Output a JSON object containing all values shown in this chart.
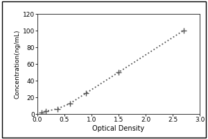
{
  "x_data": [
    0.074,
    0.148,
    0.372,
    0.6,
    0.9,
    1.5,
    2.7
  ],
  "y_data": [
    1.563,
    3.125,
    6.25,
    12.5,
    25.0,
    50.0,
    100.0
  ],
  "xlabel": "Optical Density",
  "ylabel": "Concentration(ng/mL)",
  "xlim": [
    0,
    3
  ],
  "ylim": [
    0,
    120
  ],
  "xticks": [
    0,
    0.5,
    1,
    1.5,
    2,
    2.5,
    3
  ],
  "yticks": [
    0,
    20,
    40,
    60,
    80,
    100,
    120
  ],
  "line_color": "#555555",
  "marker": "+",
  "marker_size": 6,
  "linestyle": "dotted",
  "linewidth": 1.3,
  "background_color": "#ffffff",
  "outer_border_color": "#000000",
  "xlabel_fontsize": 7,
  "ylabel_fontsize": 6.5,
  "tick_fontsize": 6.5
}
